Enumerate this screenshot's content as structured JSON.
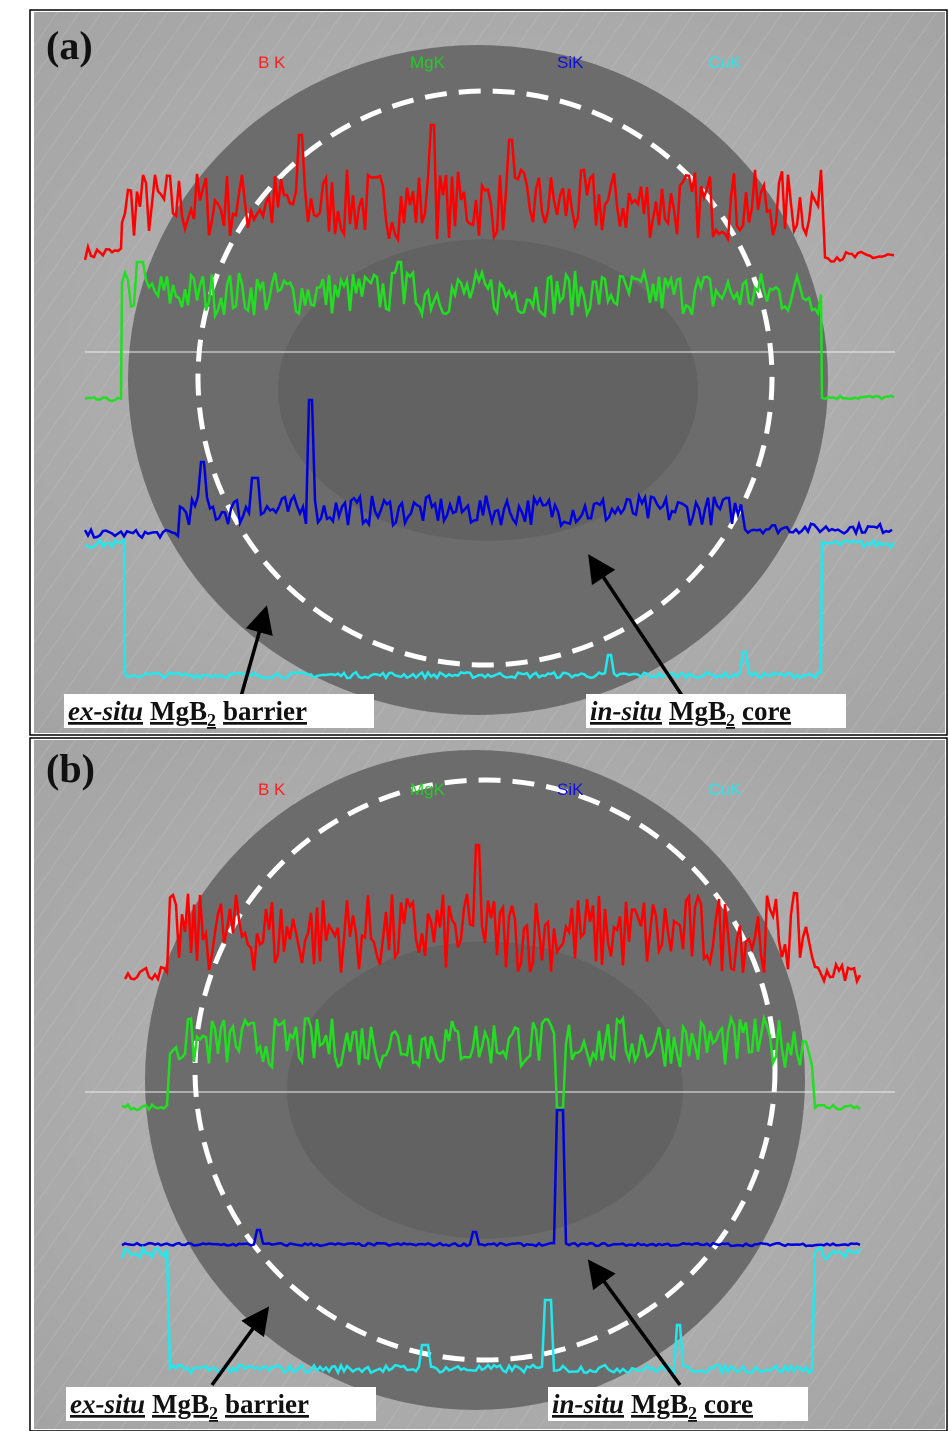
{
  "panels": [
    {
      "label": "(a)",
      "legend": [
        "B K",
        "MgK",
        "SiK",
        "CuK"
      ],
      "annotations": [
        {
          "italic": "ex-situ",
          "base": "MgB",
          "sub": "2",
          "rest": "barrier"
        },
        {
          "italic": "in-situ",
          "base": "MgB",
          "sub": "2",
          "rest": "core"
        }
      ]
    },
    {
      "label": "(b)",
      "legend": [
        "B K",
        "MgK",
        "SiK",
        "CuK"
      ],
      "annotations": [
        {
          "italic": "ex-situ",
          "base": "MgB",
          "sub": "2",
          "rest": "barrier"
        },
        {
          "italic": "in-situ",
          "base": "MgB",
          "sub": "2",
          "rest": "core"
        }
      ]
    }
  ]
}
